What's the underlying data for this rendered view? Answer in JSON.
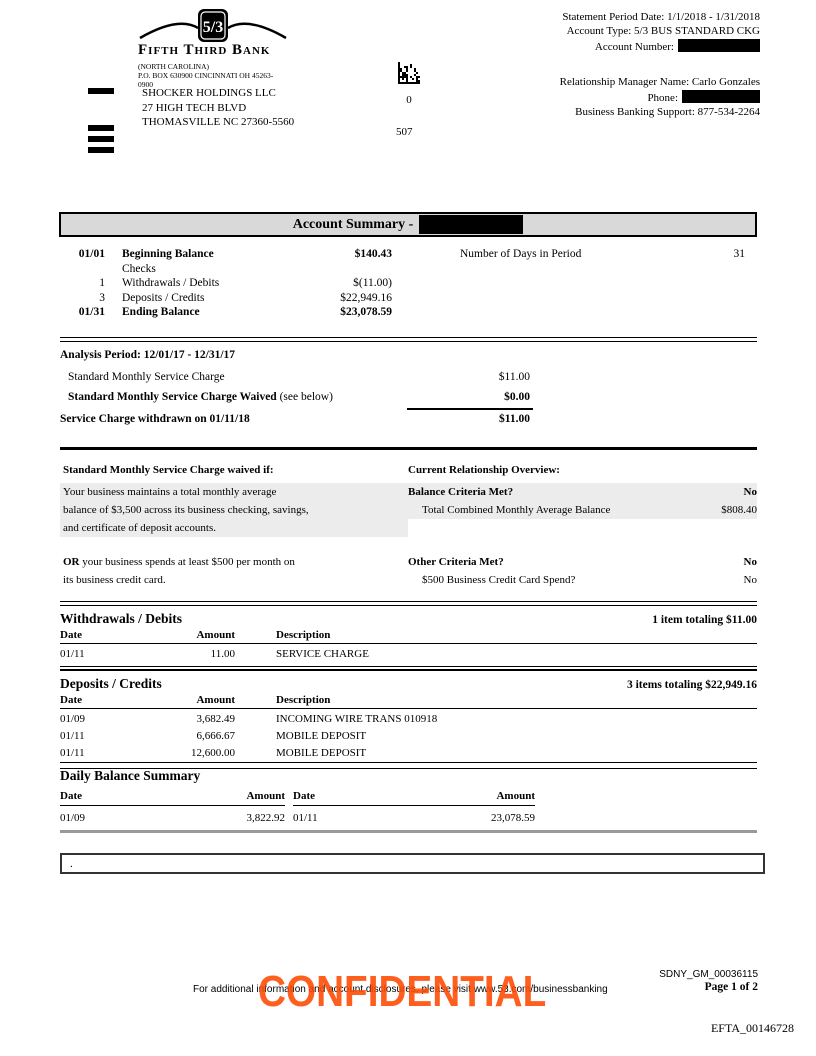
{
  "bank": {
    "shield": "5/3",
    "wordmark": "Fifth Third Bank",
    "region": "(NORTH CAROLINA)",
    "po_box": "P.O. BOX 630900 CINCINNATI OH 45263-0900"
  },
  "recipient": {
    "line1": "SHOCKER HOLDINGS LLC",
    "line2": "27 HIGH TECH BLVD",
    "line3": "THOMASVILLE NC 27360-5560"
  },
  "mail": {
    "zero": "0",
    "code": "507"
  },
  "statement_info": {
    "period": "Statement Period Date: 1/1/2018 - 1/31/2018",
    "account_type": "Account Type: 5/3 BUS STANDARD CKG",
    "account_number_label": "Account Number:",
    "relationship_manager": "Relationship Manager Name: Carlo Gonzales",
    "phone_label": "Phone:",
    "support": "Business Banking Support: 877-534-2264"
  },
  "account_summary": {
    "title": "Account Summary -",
    "days_label": "Number of Days in Period",
    "days_value": "31",
    "rows": [
      {
        "date": "01/01",
        "label": "Beginning Balance",
        "amount": "$140.43"
      },
      {
        "date": "",
        "label": "Checks",
        "amount": ""
      },
      {
        "date": "1",
        "label": "Withdrawals / Debits",
        "amount": "$(11.00)"
      },
      {
        "date": "3",
        "label": "Deposits / Credits",
        "amount": "$22,949.16"
      },
      {
        "date": "01/31",
        "label": "Ending Balance",
        "amount": "$23,078.59"
      }
    ]
  },
  "analysis": {
    "title": "Analysis Period: 12/01/17 - 12/31/17",
    "row1_label": "Standard Monthly Service Charge",
    "row1_amount": "$11.00",
    "row2_label_bold": "Standard Monthly Service Charge Waived",
    "row2_label_rest": " (see below)",
    "row2_amount": "$0.00",
    "total_label": "Service Charge withdrawn on 01/11/18",
    "total_amount": "$11.00"
  },
  "waiver": {
    "left_title": "Standard Monthly Service Charge waived if:",
    "left_line1": "Your business maintains a total monthly average",
    "left_line2": "balance of $3,500 across its business checking, savings,",
    "left_line3": "and certificate of deposit accounts.",
    "or_bold": "OR",
    "or_rest": " your business spends at least $500 per month on",
    "or_line2": "its business credit card.",
    "right_title": "Current Relationship Overview:",
    "balance_criteria_label": "Balance Criteria Met?",
    "balance_criteria_value": "No",
    "combined_balance_label": "Total Combined Monthly Average Balance",
    "combined_balance_value": "$808.40",
    "other_criteria_label": "Other Criteria Met?",
    "other_criteria_value": "No",
    "card_spend_label": "$500 Business Credit Card Spend?",
    "card_spend_value": "No"
  },
  "withdrawals": {
    "title": "Withdrawals / Debits",
    "total_note": "1 item totaling $11.00",
    "headers": {
      "date": "Date",
      "amount": "Amount",
      "description": "Description"
    },
    "rows": [
      {
        "date": "01/11",
        "amount": "11.00",
        "description": "SERVICE CHARGE"
      }
    ]
  },
  "deposits": {
    "title": "Deposits / Credits",
    "total_note": "3 items totaling $22,949.16",
    "headers": {
      "date": "Date",
      "amount": "Amount",
      "description": "Description"
    },
    "rows": [
      {
        "date": "01/09",
        "amount": "3,682.49",
        "description": "INCOMING WIRE TRANS 010918"
      },
      {
        "date": "01/11",
        "amount": "6,666.67",
        "description": "MOBILE DEPOSIT"
      },
      {
        "date": "01/11",
        "amount": "12,600.00",
        "description": "MOBILE DEPOSIT"
      }
    ]
  },
  "daily_balance": {
    "title": "Daily Balance Summary",
    "headers": {
      "date": "Date",
      "amount": "Amount"
    },
    "rows": [
      {
        "date1": "01/09",
        "amount1": "3,822.92",
        "date2": "01/11",
        "amount2": "23,078.59"
      }
    ]
  },
  "note_box": {
    "text": "."
  },
  "footer": {
    "disclosure": "For additional information and account disclosures, please visit www.53.com/businessbanking",
    "doc_id": "SDNY_GM_00036115",
    "page": "Page 1 of 2",
    "stamp": "CONFIDENTIAL",
    "stamp_color": "#ff4a00",
    "bates": "EFTA_00146728"
  }
}
